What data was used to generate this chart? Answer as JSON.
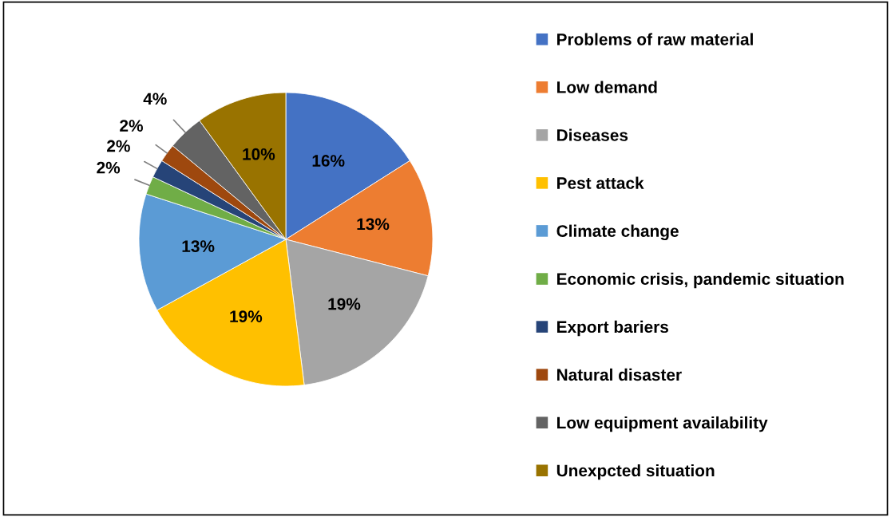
{
  "chart_data": {
    "type": "pie",
    "categories": [
      "Problems of raw material",
      "Low demand",
      "Diseases",
      "Pest attack",
      "Climate change",
      "Economic crisis, pandemic situation",
      "Export bariers",
      "Natural disaster",
      "Low equipment availability",
      "Unexpcted situation"
    ],
    "values": [
      16,
      13,
      19,
      19,
      13,
      2,
      2,
      2,
      4,
      10
    ],
    "value_labels": [
      "16%",
      "13%",
      "19%",
      "19%",
      "13%",
      "2%",
      "2%",
      "2%",
      "4%",
      "10%"
    ],
    "colors": [
      "#4472c4",
      "#ed7d31",
      "#a5a5a5",
      "#ffc000",
      "#5b9bd5",
      "#70ad47",
      "#264478",
      "#9e480e",
      "#636363",
      "#997300"
    ],
    "legend": "right"
  }
}
